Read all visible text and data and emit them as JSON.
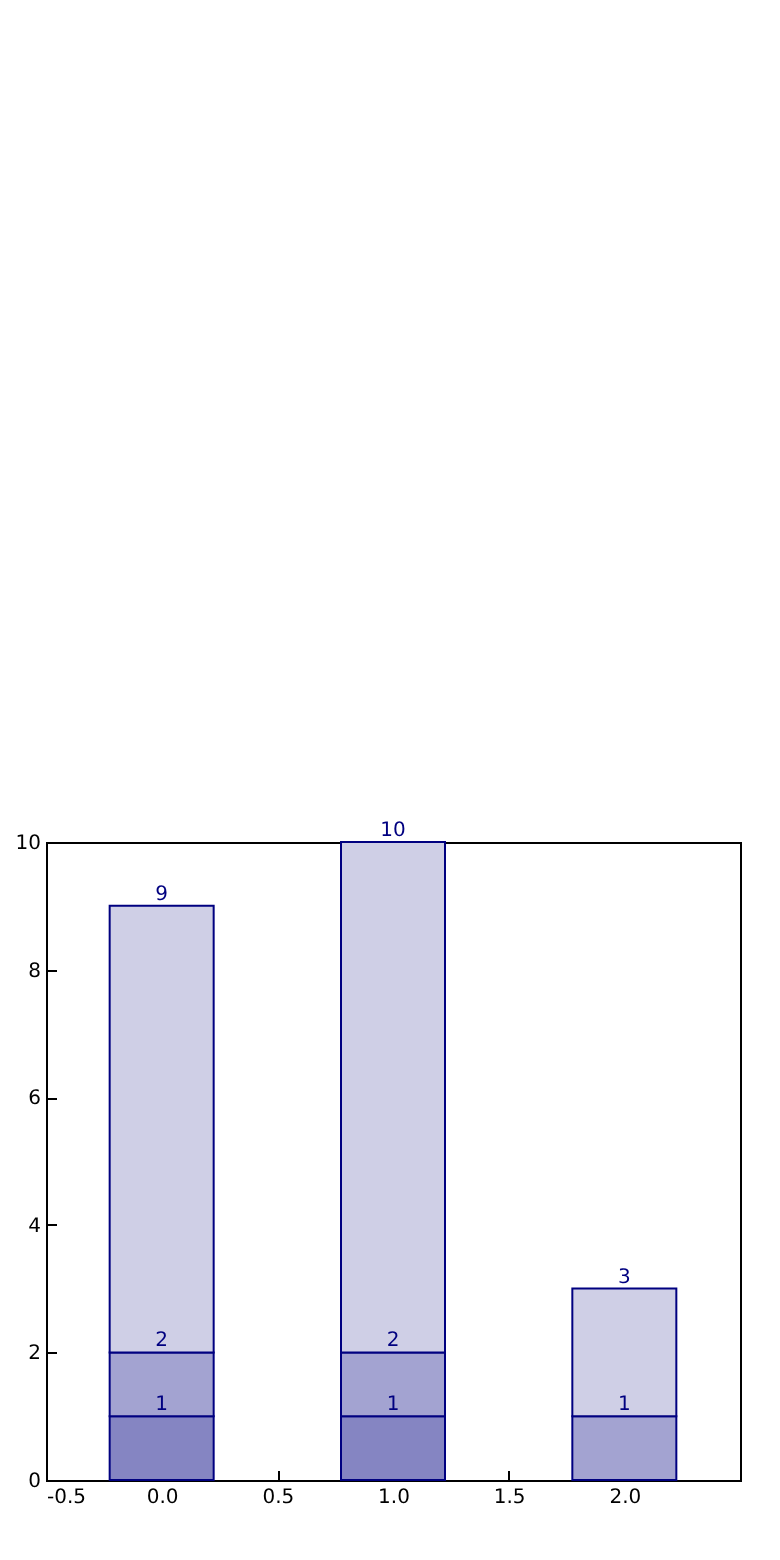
{
  "chart_data": {
    "type": "bar",
    "stacked": true,
    "x": [
      0,
      1,
      2
    ],
    "xlim": [
      -0.5,
      2.5
    ],
    "xticks": [
      -0.5,
      {
        "value": 0,
        "label": "0.0"
      },
      0.5,
      {
        "value": 1,
        "label": "1.0"
      },
      1.5,
      {
        "value": 2,
        "label": "2.0"
      }
    ],
    "ylim": [
      0,
      10
    ],
    "yticks": [
      0,
      2,
      4,
      6,
      8,
      10
    ],
    "grid": false,
    "series": [
      {
        "color": "#8585c2",
        "values": [
          1,
          1,
          null
        ]
      },
      {
        "color": "#a3a3d1",
        "values": [
          1,
          1,
          1
        ]
      },
      {
        "color": "#cfcfe6",
        "values": [
          7,
          8,
          2
        ]
      }
    ],
    "annotations": [
      {
        "text": "1",
        "x": 0,
        "y": 1
      },
      {
        "text": "2",
        "x": 0,
        "y": 2
      },
      {
        "text": "9",
        "x": 0,
        "y": 9
      },
      {
        "text": "1",
        "x": 1,
        "y": 1
      },
      {
        "text": "2",
        "x": 1,
        "y": 2
      },
      {
        "text": "10",
        "x": 1,
        "y": 10
      },
      {
        "text": "1",
        "x": 2,
        "y": 1
      },
      {
        "text": "3",
        "x": 2,
        "y": 3
      }
    ]
  }
}
